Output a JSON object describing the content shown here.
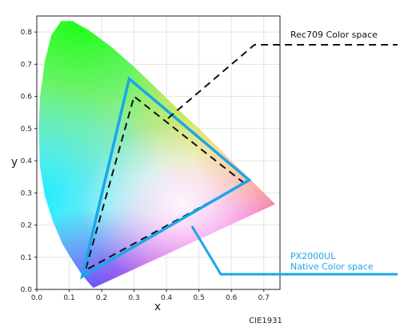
{
  "chart_data": {
    "type": "scatter",
    "title": "",
    "xlabel": "x",
    "ylabel": "y",
    "footer": "CIE1931",
    "xlim": [
      0.0,
      0.75
    ],
    "ylim": [
      0.0,
      0.85
    ],
    "grid": true,
    "xticks": [
      "0.0",
      "0.1",
      "0.2",
      "0.3",
      "0.4",
      "0.5",
      "0.6",
      "0.7"
    ],
    "yticks": [
      "0.0",
      "0.1",
      "0.2",
      "0.3",
      "0.4",
      "0.5",
      "0.6",
      "0.7",
      "0.8"
    ],
    "spectral_locus": [
      [
        0.735,
        0.265
      ],
      [
        0.716,
        0.284
      ],
      [
        0.69,
        0.31
      ],
      [
        0.64,
        0.36
      ],
      [
        0.6,
        0.4
      ],
      [
        0.55,
        0.45
      ],
      [
        0.5,
        0.5
      ],
      [
        0.44,
        0.556
      ],
      [
        0.38,
        0.615
      ],
      [
        0.3,
        0.692
      ],
      [
        0.23,
        0.754
      ],
      [
        0.16,
        0.806
      ],
      [
        0.11,
        0.834
      ],
      [
        0.075,
        0.834
      ],
      [
        0.045,
        0.79
      ],
      [
        0.025,
        0.71
      ],
      [
        0.01,
        0.6
      ],
      [
        0.006,
        0.5
      ],
      [
        0.01,
        0.38
      ],
      [
        0.025,
        0.29
      ],
      [
        0.05,
        0.21
      ],
      [
        0.08,
        0.14
      ],
      [
        0.11,
        0.09
      ],
      [
        0.14,
        0.045
      ],
      [
        0.165,
        0.015
      ],
      [
        0.175,
        0.005
      ]
    ],
    "series": [
      {
        "name": "Rec709 Color space",
        "color": "#111111",
        "style": "dashed",
        "points": [
          [
            0.64,
            0.33
          ],
          [
            0.3,
            0.6
          ],
          [
            0.15,
            0.06
          ]
        ]
      },
      {
        "name": "PX2000UL Native Color space",
        "color": "#1aa7e8",
        "style": "solid",
        "points": [
          [
            0.655,
            0.34
          ],
          [
            0.285,
            0.655
          ],
          [
            0.14,
            0.04
          ]
        ]
      }
    ],
    "annotations": [
      {
        "series": 0,
        "lines": [
          "Rec709 Color space"
        ],
        "color": "#111111"
      },
      {
        "series": 1,
        "lines": [
          "PX2000UL",
          "Native Color space"
        ],
        "color": "#1aa7e8"
      }
    ]
  }
}
